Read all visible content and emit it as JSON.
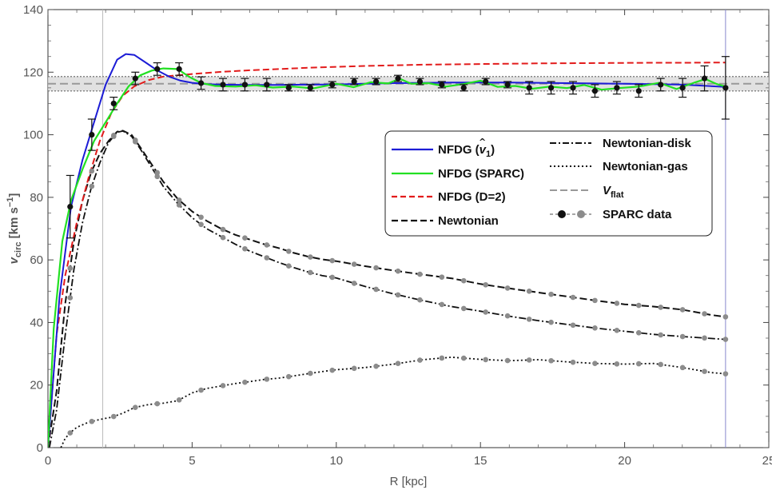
{
  "chart_data": {
    "type": "line",
    "title": "",
    "xlabel": "R [kpc]",
    "ylabel": {
      "main": "v",
      "sub": "circ",
      "unit_prefix": " [km s",
      "unit_sup": "−1",
      "unit_suffix": "]"
    },
    "xlim": [
      0,
      25
    ],
    "ylim": [
      0,
      140
    ],
    "xticks": [
      0,
      5,
      10,
      15,
      20,
      25
    ],
    "yticks": [
      0,
      20,
      40,
      60,
      80,
      100,
      120,
      140
    ],
    "xtick_labels": [
      "0",
      "5",
      "10",
      "15",
      "20",
      "25"
    ],
    "ytick_labels": [
      "0",
      "20",
      "40",
      "60",
      "80",
      "100",
      "120",
      "140"
    ],
    "vertical_lines": [
      1.9,
      23.5
    ],
    "vflat": {
      "value": 116.3,
      "band": [
        114.0,
        118.6
      ]
    },
    "colors": {
      "nfdg_v1": "#1c1cd6",
      "nfdg_sparc": "#22e022",
      "nfdg_d2": "#e21b1b",
      "newtonian": "#111111",
      "component_marker": "#8c8c8c",
      "data_marker": "#111111",
      "vflat": "#999999"
    },
    "series": [
      {
        "name": "NFDG",
        "key": "nfdg_v1",
        "points": [
          [
            0,
            0
          ],
          [
            0.4,
            48
          ],
          [
            0.8,
            77
          ],
          [
            1.2,
            92
          ],
          [
            1.6,
            104
          ],
          [
            2.0,
            116
          ],
          [
            2.4,
            124
          ],
          [
            2.7,
            125.8
          ],
          [
            3.0,
            125.5
          ],
          [
            3.4,
            123
          ],
          [
            3.8,
            120.5
          ],
          [
            4.2,
            118.6
          ],
          [
            4.6,
            117.3
          ],
          [
            5.0,
            116.6
          ],
          [
            5.5,
            116.2
          ],
          [
            6.0,
            116.0
          ],
          [
            7.0,
            115.9
          ],
          [
            8.0,
            115.9
          ],
          [
            9.0,
            116.0
          ],
          [
            10.0,
            116.1
          ],
          [
            11.0,
            116.3
          ],
          [
            12.0,
            116.5
          ],
          [
            13.0,
            116.6
          ],
          [
            14.0,
            116.7
          ],
          [
            15.0,
            116.7
          ],
          [
            16.0,
            116.7
          ],
          [
            17.0,
            116.6
          ],
          [
            18.0,
            116.5
          ],
          [
            19.0,
            116.4
          ],
          [
            20.0,
            116.3
          ],
          [
            21.0,
            116.2
          ],
          [
            22.0,
            116.0
          ],
          [
            23.5,
            115.3
          ]
        ]
      },
      {
        "name": "NFDG (SPARC)",
        "key": "nfdg_sparc",
        "points": [
          [
            0,
            0
          ],
          [
            0.2,
            38
          ],
          [
            0.5,
            66
          ],
          [
            0.8,
            79
          ],
          [
            1.2,
            89
          ],
          [
            1.6,
            98
          ],
          [
            2.0,
            104
          ],
          [
            2.4,
            110
          ],
          [
            2.8,
            115.5
          ],
          [
            3.2,
            119
          ],
          [
            3.6,
            120.5
          ],
          [
            4.0,
            121.2
          ],
          [
            4.5,
            121.0
          ],
          [
            4.9,
            118.5
          ],
          [
            5.3,
            116.6
          ],
          [
            5.8,
            115.6
          ],
          [
            6.5,
            115.4
          ],
          [
            7.2,
            115.8
          ],
          [
            7.8,
            115.1
          ],
          [
            8.5,
            115.4
          ],
          [
            9.2,
            114.8
          ],
          [
            10.0,
            116.3
          ],
          [
            10.6,
            115.2
          ],
          [
            11.2,
            116.8
          ],
          [
            11.8,
            116.4
          ],
          [
            12.2,
            117.9
          ],
          [
            12.6,
            116.3
          ],
          [
            13.2,
            116.5
          ],
          [
            13.8,
            115.4
          ],
          [
            14.4,
            116.2
          ],
          [
            15.0,
            117.3
          ],
          [
            15.6,
            115.3
          ],
          [
            16.2,
            115.6
          ],
          [
            16.8,
            114.7
          ],
          [
            17.4,
            115.4
          ],
          [
            18.0,
            114.9
          ],
          [
            18.6,
            115.9
          ],
          [
            19.2,
            114.4
          ],
          [
            19.8,
            114.9
          ],
          [
            20.5,
            115.4
          ],
          [
            21.2,
            116.6
          ],
          [
            21.8,
            114.6
          ],
          [
            22.4,
            116.6
          ],
          [
            22.8,
            117.8
          ],
          [
            23.2,
            116.2
          ],
          [
            23.5,
            115.4
          ]
        ]
      },
      {
        "name": "NFDG (D=2)",
        "key": "nfdg_d2",
        "points": [
          [
            0,
            0
          ],
          [
            0.3,
            36
          ],
          [
            0.6,
            55
          ],
          [
            1.0,
            72
          ],
          [
            1.4,
            86
          ],
          [
            1.8,
            98
          ],
          [
            2.2,
            107
          ],
          [
            2.6,
            112.5
          ],
          [
            3.0,
            115.5
          ],
          [
            3.5,
            117.5
          ],
          [
            4.0,
            118.6
          ],
          [
            5.0,
            119.4
          ],
          [
            6.0,
            120.1
          ],
          [
            7.0,
            120.6
          ],
          [
            8.0,
            121.0
          ],
          [
            9.0,
            121.4
          ],
          [
            10.0,
            121.7
          ],
          [
            11.0,
            122.0
          ],
          [
            12.0,
            122.2
          ],
          [
            13.0,
            122.4
          ],
          [
            14.0,
            122.5
          ],
          [
            15.0,
            122.6
          ],
          [
            16.0,
            122.7
          ],
          [
            17.0,
            122.8
          ],
          [
            18.0,
            122.85
          ],
          [
            19.0,
            122.9
          ],
          [
            20.0,
            122.95
          ],
          [
            21.0,
            123.0
          ],
          [
            22.0,
            123.0
          ],
          [
            23.5,
            123.1
          ]
        ]
      },
      {
        "name": "Newtonian",
        "key": "newtonian",
        "points": [
          [
            0,
            0
          ],
          [
            0.3,
            18
          ],
          [
            0.6,
            46
          ],
          [
            0.9,
            66
          ],
          [
            1.2,
            79
          ],
          [
            1.5,
            88
          ],
          [
            1.8,
            94
          ],
          [
            2.1,
            98
          ],
          [
            2.4,
            101
          ],
          [
            2.6,
            101.3
          ],
          [
            2.9,
            100
          ],
          [
            3.2,
            96
          ],
          [
            3.6,
            90.5
          ],
          [
            4.0,
            85
          ],
          [
            4.5,
            79.5
          ],
          [
            5.0,
            75.5
          ],
          [
            5.5,
            72.5
          ],
          [
            6.0,
            70
          ],
          [
            6.5,
            68
          ],
          [
            7.0,
            66.5
          ],
          [
            7.5,
            65
          ],
          [
            8.0,
            63.8
          ],
          [
            8.5,
            62.3
          ],
          [
            9.0,
            61.1
          ],
          [
            9.5,
            60.2
          ],
          [
            10.0,
            59.6
          ],
          [
            11.0,
            58
          ],
          [
            12.0,
            56.6
          ],
          [
            13.0,
            55.3
          ],
          [
            14.0,
            54.1
          ],
          [
            15.0,
            52.3
          ],
          [
            16.0,
            50.9
          ],
          [
            17.0,
            49.6
          ],
          [
            18.0,
            48.3
          ],
          [
            19.0,
            47
          ],
          [
            20.0,
            45.8
          ],
          [
            21.0,
            45.1
          ],
          [
            22.0,
            44.1
          ],
          [
            23.0,
            42.4
          ],
          [
            23.5,
            41.8
          ]
        ]
      },
      {
        "name": "Newtonian-disk",
        "key": "newtonian_disk",
        "points": [
          [
            0.05,
            0
          ],
          [
            0.3,
            12
          ],
          [
            0.6,
            36
          ],
          [
            0.9,
            57
          ],
          [
            1.2,
            72
          ],
          [
            1.5,
            83
          ],
          [
            1.8,
            91
          ],
          [
            2.1,
            97.5
          ],
          [
            2.4,
            100.8
          ],
          [
            2.6,
            101.2
          ],
          [
            2.9,
            99.5
          ],
          [
            3.2,
            95.5
          ],
          [
            3.6,
            89.5
          ],
          [
            4.0,
            83.5
          ],
          [
            4.5,
            78
          ],
          [
            5.0,
            73.5
          ],
          [
            5.5,
            70
          ],
          [
            6.0,
            67.5
          ],
          [
            6.5,
            65
          ],
          [
            7.0,
            62.8
          ],
          [
            7.5,
            61
          ],
          [
            8.0,
            59.2
          ],
          [
            8.5,
            57.6
          ],
          [
            9.0,
            56.2
          ],
          [
            9.5,
            55
          ],
          [
            10.0,
            54.2
          ],
          [
            11.0,
            51.5
          ],
          [
            12.0,
            49.1
          ],
          [
            13.0,
            47
          ],
          [
            14.0,
            45.1
          ],
          [
            15.0,
            43.6
          ],
          [
            16.0,
            42
          ],
          [
            17.0,
            40.6
          ],
          [
            18.0,
            39.4
          ],
          [
            19.0,
            38.2
          ],
          [
            20.0,
            37.2
          ],
          [
            21.0,
            36.2
          ],
          [
            22.0,
            35.5
          ],
          [
            23.0,
            34.9
          ],
          [
            23.5,
            34.6
          ]
        ]
      },
      {
        "name": "Newtonian-gas",
        "key": "newtonian_gas",
        "points": [
          [
            0.45,
            0
          ],
          [
            0.6,
            3
          ],
          [
            0.8,
            5
          ],
          [
            1.0,
            6.5
          ],
          [
            1.4,
            8.1
          ],
          [
            1.8,
            9
          ],
          [
            2.2,
            9.7
          ],
          [
            2.6,
            11
          ],
          [
            3.0,
            12.8
          ],
          [
            3.5,
            13.8
          ],
          [
            4.0,
            14.2
          ],
          [
            4.5,
            15
          ],
          [
            5.0,
            17.5
          ],
          [
            5.5,
            18.9
          ],
          [
            6.0,
            19.7
          ],
          [
            6.5,
            20.5
          ],
          [
            7.0,
            21.1
          ],
          [
            7.5,
            21.8
          ],
          [
            8.0,
            22.2
          ],
          [
            8.5,
            22.9
          ],
          [
            9.0,
            23.6
          ],
          [
            9.5,
            24.3
          ],
          [
            10.0,
            24.9
          ],
          [
            11.0,
            25.6
          ],
          [
            12.0,
            26.7
          ],
          [
            13.0,
            28.1
          ],
          [
            14.0,
            28.9
          ],
          [
            15.0,
            28.2
          ],
          [
            16.0,
            27.8
          ],
          [
            17.0,
            28.1
          ],
          [
            18.0,
            27.4
          ],
          [
            19.0,
            26.9
          ],
          [
            20.0,
            26.7
          ],
          [
            21.0,
            26.9
          ],
          [
            22.0,
            25.6
          ],
          [
            23.0,
            24
          ],
          [
            23.5,
            23.6
          ]
        ]
      }
    ],
    "vflat_series_name": "V",
    "vflat_series_sub": "flat",
    "data_series_name": "SPARC data",
    "sparc_data": [
      {
        "x": 0.77,
        "y": 77,
        "err": 10
      },
      {
        "x": 1.52,
        "y": 100,
        "err": 5
      },
      {
        "x": 2.28,
        "y": 110,
        "err": 2
      },
      {
        "x": 3.03,
        "y": 118,
        "err": 2
      },
      {
        "x": 3.79,
        "y": 121,
        "err": 2
      },
      {
        "x": 4.55,
        "y": 121,
        "err": 2
      },
      {
        "x": 5.31,
        "y": 116.5,
        "err": 2
      },
      {
        "x": 6.07,
        "y": 116,
        "err": 2
      },
      {
        "x": 6.83,
        "y": 116,
        "err": 2
      },
      {
        "x": 7.59,
        "y": 116,
        "err": 2
      },
      {
        "x": 8.35,
        "y": 115,
        "err": 1
      },
      {
        "x": 9.1,
        "y": 115,
        "err": 1
      },
      {
        "x": 9.86,
        "y": 116,
        "err": 1
      },
      {
        "x": 10.62,
        "y": 117,
        "err": 1
      },
      {
        "x": 11.38,
        "y": 117,
        "err": 1
      },
      {
        "x": 12.14,
        "y": 118,
        "err": 1
      },
      {
        "x": 12.9,
        "y": 117,
        "err": 1
      },
      {
        "x": 13.66,
        "y": 116,
        "err": 1
      },
      {
        "x": 14.42,
        "y": 115,
        "err": 1
      },
      {
        "x": 15.18,
        "y": 117,
        "err": 1
      },
      {
        "x": 15.94,
        "y": 116,
        "err": 1
      },
      {
        "x": 16.69,
        "y": 115,
        "err": 2
      },
      {
        "x": 17.45,
        "y": 115,
        "err": 2
      },
      {
        "x": 18.21,
        "y": 115,
        "err": 2
      },
      {
        "x": 18.97,
        "y": 114,
        "err": 2
      },
      {
        "x": 19.73,
        "y": 115,
        "err": 2
      },
      {
        "x": 20.49,
        "y": 114,
        "err": 2
      },
      {
        "x": 21.25,
        "y": 116,
        "err": 2
      },
      {
        "x": 22.01,
        "y": 115,
        "err": 3
      },
      {
        "x": 22.77,
        "y": 118,
        "err": 4
      },
      {
        "x": 23.5,
        "y": 115,
        "err": 10
      }
    ],
    "newtonian_markers": {
      "x": [
        0.77,
        1.52,
        2.28,
        3.03,
        3.79,
        4.55,
        5.31,
        6.07,
        6.83,
        7.59,
        8.35,
        9.1,
        9.86,
        10.62,
        11.38,
        12.14,
        12.9,
        13.66,
        14.42,
        15.18,
        15.94,
        16.69,
        17.45,
        18.21,
        18.97,
        19.73,
        20.49,
        21.25,
        22.01,
        22.77,
        23.5
      ]
    },
    "legend": {
      "placement": "center-right",
      "entries": [
        {
          "key": "nfdg_v1",
          "label": "NFDG (",
          "label_math": "v",
          "label_sub": "1",
          "label_end": ")"
        },
        {
          "key": "nfdg_sparc",
          "label": "NFDG (SPARC)"
        },
        {
          "key": "nfdg_d2",
          "label": "NFDG (D=2)"
        },
        {
          "key": "newtonian",
          "label": "Newtonian"
        },
        {
          "key": "newtonian_disk",
          "label": "Newtonian-disk"
        },
        {
          "key": "newtonian_gas",
          "label": "Newtonian-gas"
        },
        {
          "key": "vflat",
          "label": "V",
          "label_sub": "flat"
        },
        {
          "key": "sparc",
          "label": "SPARC data"
        }
      ]
    }
  }
}
